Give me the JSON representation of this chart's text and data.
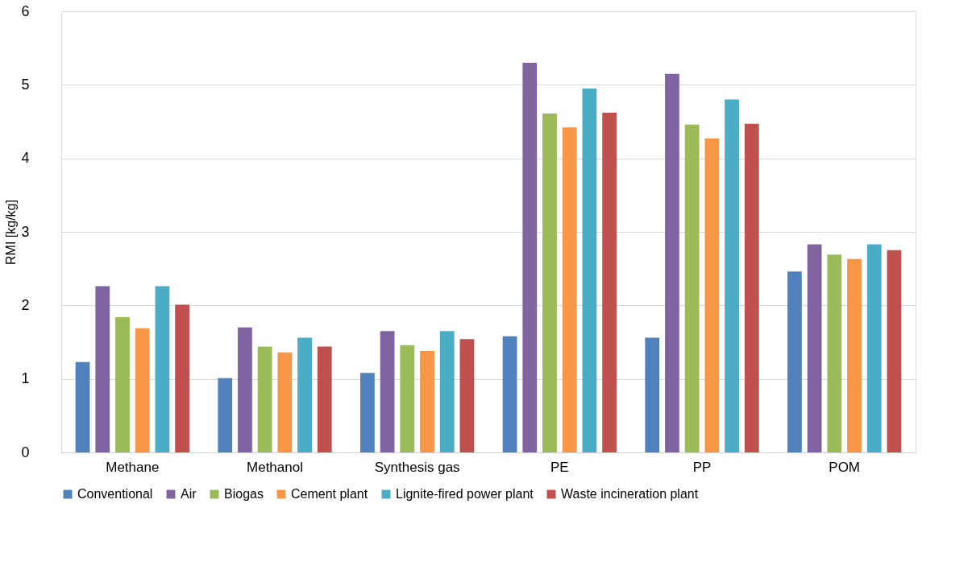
{
  "chart_data": {
    "type": "bar",
    "ylabel": "RMI [kg/kg]",
    "categories": [
      "Methane",
      "Methanol",
      "Synthesis gas",
      "PE",
      "PP",
      "POM"
    ],
    "series": [
      {
        "name": "Conventional",
        "color": "#4f81bd",
        "values": [
          1.23,
          1.01,
          1.08,
          1.58,
          1.56,
          2.46
        ]
      },
      {
        "name": "Air",
        "color": "#8064a2",
        "values": [
          2.26,
          1.7,
          1.65,
          5.3,
          5.15,
          2.83
        ]
      },
      {
        "name": "Biogas",
        "color": "#9bbb59",
        "values": [
          1.84,
          1.44,
          1.46,
          4.61,
          4.46,
          2.69
        ]
      },
      {
        "name": "Cement plant",
        "color": "#f79646",
        "values": [
          1.69,
          1.36,
          1.38,
          4.42,
          4.27,
          2.63
        ]
      },
      {
        "name": "Lignite-fired power plant",
        "color": "#4bacc6",
        "values": [
          2.26,
          1.56,
          1.65,
          4.95,
          4.8,
          2.83
        ]
      },
      {
        "name": "Waste incineration plant",
        "color": "#c0504d",
        "values": [
          2.01,
          1.44,
          1.54,
          4.62,
          4.47,
          2.75
        ]
      }
    ],
    "ylim": [
      0,
      6
    ],
    "yticks": [
      0,
      1,
      2,
      3,
      4,
      5,
      6
    ],
    "grid": "y",
    "legend": "bottom"
  }
}
